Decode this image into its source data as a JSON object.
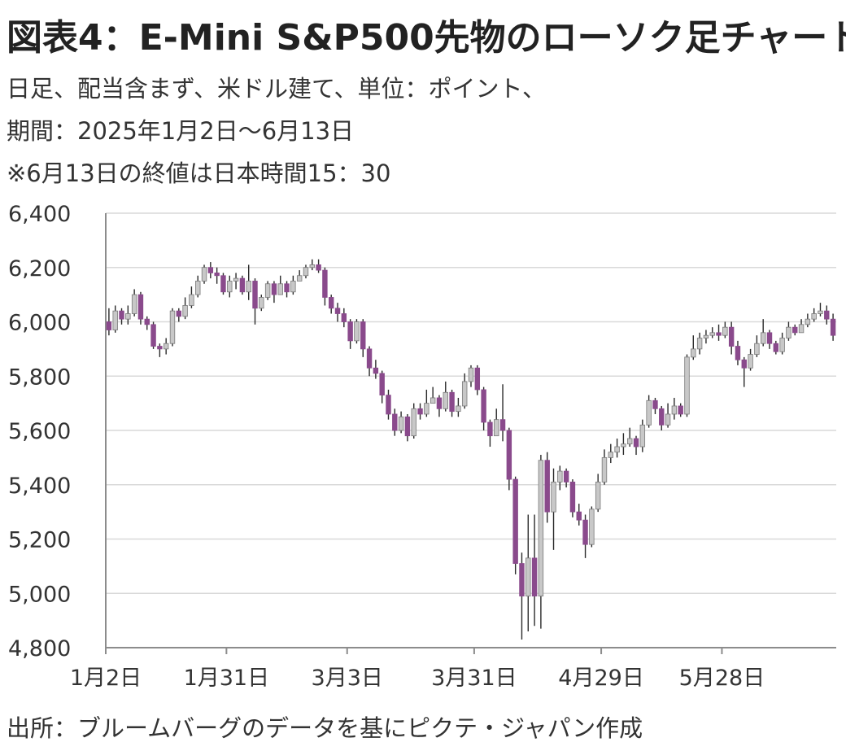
{
  "title": "図表4：E-Mini S&P500先物のローソク足チャート",
  "subtitle_lines": [
    "日足、配当含まず、米ドル建て、単位：ポイント、",
    "期間：2025年1月2日～6月13日",
    "※6月13日の終値は日本時間15：30"
  ],
  "source": "出所：ブルームバーグのデータを基にピクテ・ジャパン作成",
  "colors": {
    "up": "#c8c8c8",
    "down": "#8a4a8c",
    "grid": "#d9d9d9",
    "axis": "#8c8c8c"
  },
  "chart_data": {
    "type": "candlestick",
    "ylim": [
      4800,
      6400
    ],
    "yticks": [
      4800,
      5000,
      5200,
      5400,
      5600,
      5800,
      6000,
      6200,
      6400
    ],
    "ytick_labels": [
      "4,800",
      "5,000",
      "5,200",
      "5,400",
      "5,600",
      "5,800",
      "6,000",
      "6,200",
      "6,400"
    ],
    "xticks": [
      {
        "index": 0,
        "label": "1月2日"
      },
      {
        "index": 19,
        "label": "1月31日"
      },
      {
        "index": 38,
        "label": "3月3日"
      },
      {
        "index": 58,
        "label": "3月31日"
      },
      {
        "index": 78,
        "label": "4月29日"
      },
      {
        "index": 97,
        "label": "5月28日"
      }
    ],
    "grid": "horizontal",
    "legend": "none",
    "candles": [
      [
        6000,
        5970,
        6050,
        5950
      ],
      [
        5970,
        6040,
        6060,
        5960
      ],
      [
        6040,
        6010,
        6050,
        5990
      ],
      [
        6010,
        6030,
        6060,
        5990
      ],
      [
        6030,
        6100,
        6120,
        6020
      ],
      [
        6100,
        6010,
        6110,
        5990
      ],
      [
        6010,
        5990,
        6020,
        5970
      ],
      [
        5990,
        5910,
        6000,
        5900
      ],
      [
        5910,
        5900,
        5920,
        5870
      ],
      [
        5900,
        5920,
        5940,
        5880
      ],
      [
        5920,
        6040,
        6050,
        5910
      ],
      [
        6040,
        6020,
        6050,
        6000
      ],
      [
        6020,
        6060,
        6090,
        6010
      ],
      [
        6060,
        6100,
        6130,
        6050
      ],
      [
        6100,
        6150,
        6170,
        6090
      ],
      [
        6150,
        6200,
        6210,
        6140
      ],
      [
        6200,
        6180,
        6220,
        6160
      ],
      [
        6180,
        6170,
        6200,
        6140
      ],
      [
        6170,
        6110,
        6180,
        6100
      ],
      [
        6110,
        6150,
        6170,
        6090
      ],
      [
        6150,
        6160,
        6180,
        6120
      ],
      [
        6160,
        6110,
        6170,
        6100
      ],
      [
        6110,
        6150,
        6210,
        6080
      ],
      [
        6150,
        6050,
        6160,
        5990
      ],
      [
        6050,
        6090,
        6100,
        6040
      ],
      [
        6090,
        6140,
        6150,
        6080
      ],
      [
        6140,
        6100,
        6150,
        6070
      ],
      [
        6100,
        6140,
        6170,
        6100
      ],
      [
        6140,
        6110,
        6150,
        6090
      ],
      [
        6110,
        6150,
        6170,
        6100
      ],
      [
        6150,
        6170,
        6190,
        6150
      ],
      [
        6170,
        6200,
        6210,
        6160
      ],
      [
        6200,
        6210,
        6230,
        6190
      ],
      [
        6210,
        6190,
        6230,
        6180
      ],
      [
        6190,
        6090,
        6200,
        6060
      ],
      [
        6090,
        6050,
        6100,
        6030
      ],
      [
        6050,
        6030,
        6070,
        6000
      ],
      [
        6030,
        6000,
        6050,
        5980
      ],
      [
        6000,
        5930,
        6010,
        5900
      ],
      [
        5930,
        6000,
        6010,
        5920
      ],
      [
        6000,
        5900,
        6010,
        5870
      ],
      [
        5900,
        5830,
        5910,
        5800
      ],
      [
        5830,
        5810,
        5860,
        5790
      ],
      [
        5810,
        5730,
        5820,
        5700
      ],
      [
        5730,
        5660,
        5750,
        5640
      ],
      [
        5660,
        5600,
        5680,
        5580
      ],
      [
        5600,
        5650,
        5670,
        5590
      ],
      [
        5650,
        5580,
        5660,
        5560
      ],
      [
        5580,
        5680,
        5700,
        5570
      ],
      [
        5680,
        5660,
        5700,
        5640
      ],
      [
        5660,
        5700,
        5750,
        5650
      ],
      [
        5700,
        5720,
        5760,
        5700
      ],
      [
        5720,
        5680,
        5730,
        5650
      ],
      [
        5680,
        5740,
        5780,
        5670
      ],
      [
        5740,
        5670,
        5750,
        5650
      ],
      [
        5670,
        5690,
        5720,
        5650
      ],
      [
        5690,
        5780,
        5810,
        5680
      ],
      [
        5780,
        5830,
        5840,
        5760
      ],
      [
        5830,
        5750,
        5840,
        5730
      ],
      [
        5750,
        5630,
        5760,
        5600
      ],
      [
        5630,
        5580,
        5640,
        5540
      ],
      [
        5580,
        5640,
        5680,
        5580
      ],
      [
        5640,
        5600,
        5770,
        5560
      ],
      [
        5600,
        5420,
        5610,
        5380
      ],
      [
        5420,
        5110,
        5430,
        5070
      ],
      [
        5110,
        4990,
        5150,
        4830
      ],
      [
        4990,
        5130,
        5290,
        4860
      ],
      [
        5130,
        4990,
        5290,
        4880
      ],
      [
        4990,
        5490,
        5510,
        4870
      ],
      [
        5490,
        5300,
        5520,
        5260
      ],
      [
        5300,
        5410,
        5460,
        5160
      ],
      [
        5410,
        5450,
        5470,
        5380
      ],
      [
        5450,
        5410,
        5460,
        5390
      ],
      [
        5410,
        5300,
        5420,
        5280
      ],
      [
        5300,
        5270,
        5330,
        5250
      ],
      [
        5270,
        5180,
        5290,
        5130
      ],
      [
        5180,
        5310,
        5320,
        5170
      ],
      [
        5310,
        5410,
        5440,
        5300
      ],
      [
        5410,
        5500,
        5530,
        5400
      ],
      [
        5500,
        5520,
        5550,
        5480
      ],
      [
        5520,
        5540,
        5570,
        5500
      ],
      [
        5540,
        5550,
        5590,
        5510
      ],
      [
        5550,
        5570,
        5610,
        5540
      ],
      [
        5570,
        5540,
        5580,
        5510
      ],
      [
        5540,
        5620,
        5640,
        5520
      ],
      [
        5620,
        5710,
        5730,
        5610
      ],
      [
        5710,
        5680,
        5720,
        5660
      ],
      [
        5680,
        5620,
        5690,
        5600
      ],
      [
        5620,
        5660,
        5700,
        5610
      ],
      [
        5660,
        5690,
        5720,
        5640
      ],
      [
        5690,
        5660,
        5700,
        5650
      ],
      [
        5660,
        5870,
        5880,
        5650
      ],
      [
        5870,
        5900,
        5950,
        5860
      ],
      [
        5900,
        5940,
        5960,
        5880
      ],
      [
        5940,
        5950,
        5970,
        5920
      ],
      [
        5950,
        5960,
        5980,
        5940
      ],
      [
        5960,
        5950,
        5990,
        5930
      ],
      [
        5950,
        5980,
        6000,
        5940
      ],
      [
        5980,
        5910,
        6000,
        5880
      ],
      [
        5910,
        5860,
        5930,
        5840
      ],
      [
        5860,
        5830,
        5870,
        5760
      ],
      [
        5830,
        5880,
        5900,
        5820
      ],
      [
        5880,
        5920,
        5950,
        5870
      ],
      [
        5920,
        5960,
        6010,
        5910
      ],
      [
        5960,
        5920,
        5970,
        5900
      ],
      [
        5920,
        5890,
        5930,
        5880
      ],
      [
        5890,
        5940,
        5960,
        5880
      ],
      [
        5940,
        5980,
        6000,
        5930
      ],
      [
        5980,
        5960,
        5990,
        5950
      ],
      [
        5960,
        5990,
        6010,
        5960
      ],
      [
        5990,
        6010,
        6030,
        5980
      ],
      [
        6010,
        6030,
        6050,
        6000
      ],
      [
        6030,
        6040,
        6070,
        6020
      ],
      [
        6040,
        6010,
        6060,
        5990
      ],
      [
        6010,
        5950,
        6030,
        5930
      ]
    ]
  }
}
